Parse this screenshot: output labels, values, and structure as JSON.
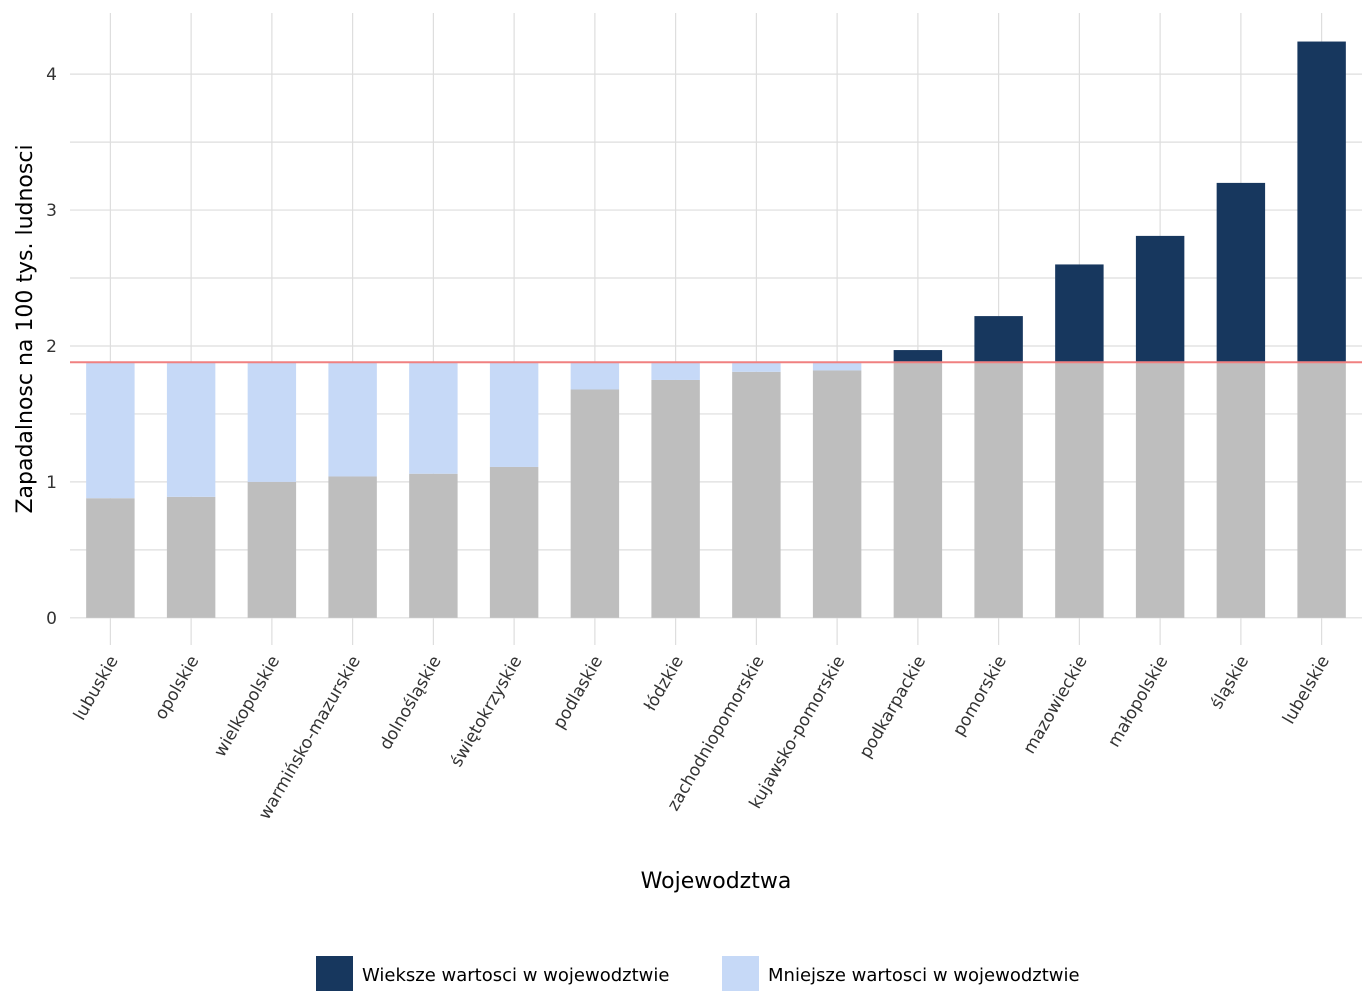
{
  "chart_data": {
    "type": "bar",
    "title": "",
    "xlabel": "Wojewodztwa",
    "ylabel": "Zapadalnosc na 100 tys. ludnosci",
    "ylim": [
      -0.2,
      4.45
    ],
    "yticks": [
      0,
      1,
      2,
      3,
      4
    ],
    "grid": true,
    "legend_position": "bottom",
    "reference_line": {
      "value": 1.88,
      "color": "#f08080"
    },
    "categories": [
      "lubuskie",
      "opolskie",
      "wielkopolskie",
      "warmińsko-mazurskie",
      "dolnośląskie",
      "świętokrzyskie",
      "podlaskie",
      "łódzkie",
      "zachodniopomorskie",
      "kujawsko-pomorskie",
      "podkarpackie",
      "pomorskie",
      "mazowieckie",
      "małopolskie",
      "śląskie",
      "lubelskie"
    ],
    "values": [
      0.88,
      0.89,
      1.0,
      1.04,
      1.06,
      1.11,
      1.68,
      1.75,
      1.81,
      1.82,
      1.97,
      2.22,
      2.6,
      2.81,
      3.2,
      4.24
    ],
    "baseline_color": "#bebebe",
    "series": [
      {
        "name": "Wieksze wartosci w wojewodztwie",
        "color": "#17375e"
      },
      {
        "name": "Mniejsze wartosci w wojewodztwie",
        "color": "#c6d9f7"
      }
    ]
  }
}
